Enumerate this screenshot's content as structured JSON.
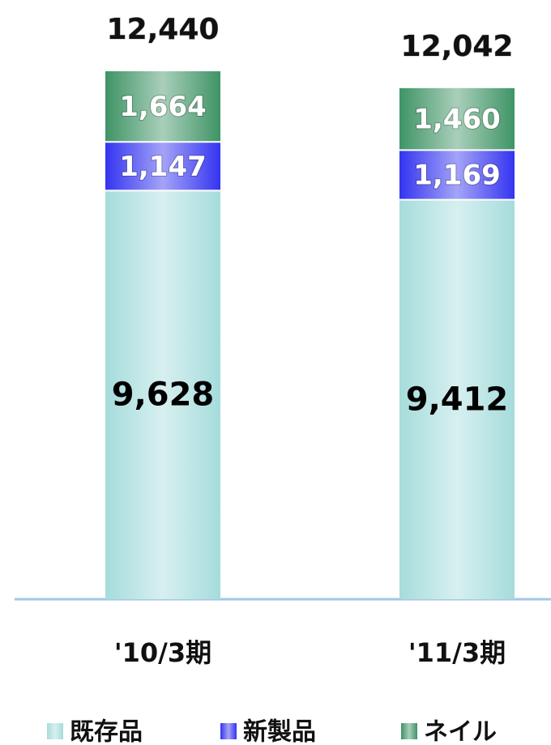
{
  "chart_data": {
    "type": "stacked_bar",
    "categories": [
      "'10/3期",
      "'11/3期"
    ],
    "series": [
      {
        "name": "既存品",
        "color": "#a6dcdc",
        "label_color": "#000000",
        "values": [
          9628,
          9412
        ],
        "value_labels": [
          "9,628",
          "9,412"
        ]
      },
      {
        "name": "新製品",
        "color": "#3434f0",
        "label_color": "#ffffff",
        "values": [
          1147,
          1169
        ],
        "value_labels": [
          "1,147",
          "1,169"
        ]
      },
      {
        "name": "ネイル",
        "color": "#3f9466",
        "label_color": "#ffffff",
        "values": [
          1664,
          1460
        ],
        "value_labels": [
          "1,664",
          "1,460"
        ]
      }
    ],
    "totals": [
      12440,
      12042
    ],
    "total_labels": [
      "12,440",
      "12,042"
    ]
  }
}
